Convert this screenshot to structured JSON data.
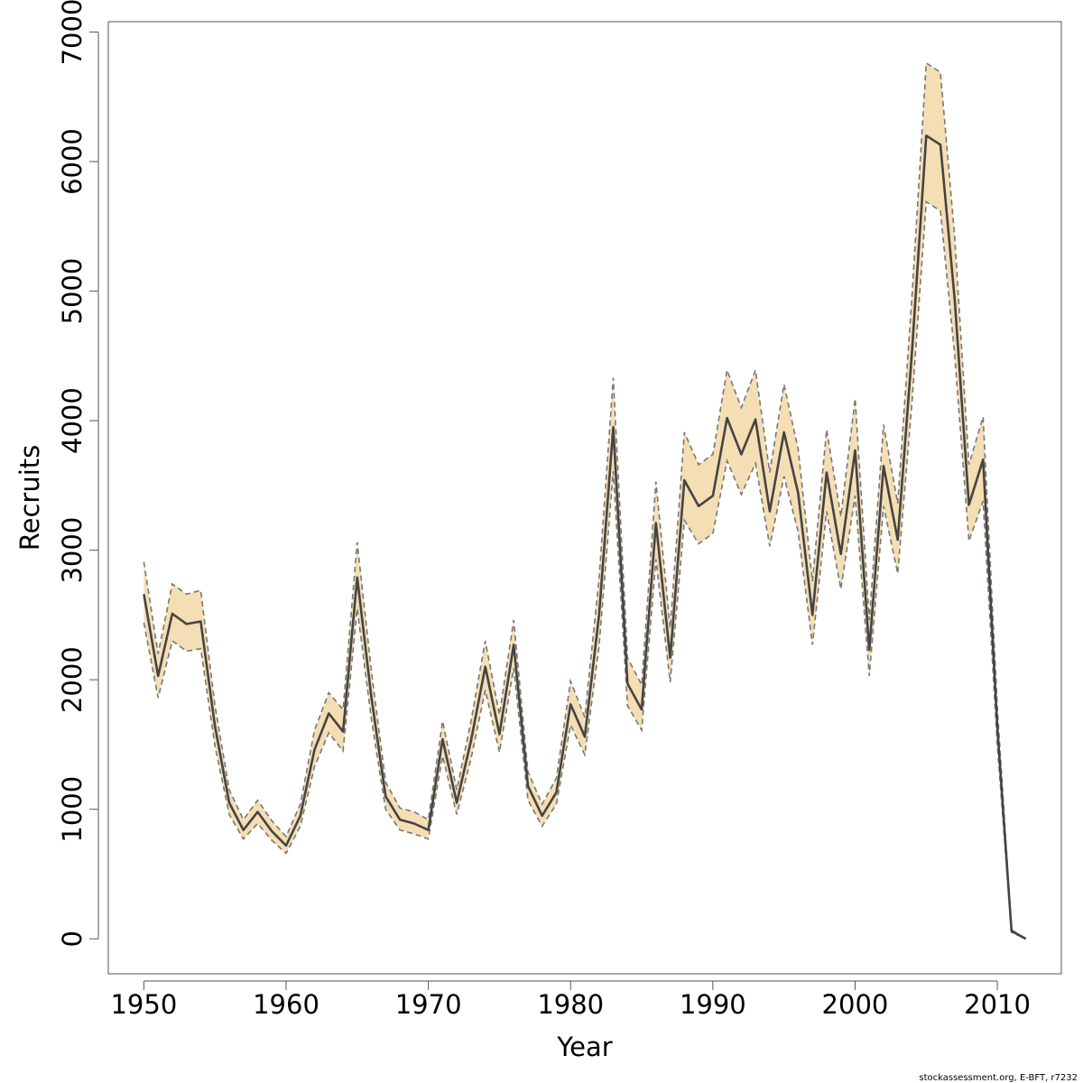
{
  "chart_data": {
    "type": "line",
    "title": "",
    "xlabel": "Year",
    "ylabel": "Recruits",
    "xlim": [
      1947.5,
      2014.5
    ],
    "ylim": [
      -270,
      7080
    ],
    "x_ticks": [
      1950,
      1960,
      1970,
      1980,
      1990,
      2000,
      2010
    ],
    "y_ticks": [
      0,
      1000,
      2000,
      3000,
      4000,
      5000,
      6000,
      7000
    ],
    "grid": false,
    "legend": "none",
    "colors": {
      "band": "#f5deb3",
      "line": "#444444",
      "bounds": "#777777"
    },
    "credit": "stockassessment.org, E-BFT, r7232",
    "x": [
      1950,
      1951,
      1952,
      1953,
      1954,
      1955,
      1956,
      1957,
      1958,
      1959,
      1960,
      1961,
      1962,
      1963,
      1964,
      1965,
      1966,
      1967,
      1968,
      1969,
      1970,
      1971,
      1972,
      1973,
      1974,
      1975,
      1976,
      1977,
      1978,
      1979,
      1980,
      1981,
      1982,
      1983,
      1984,
      1985,
      1986,
      1987,
      1988,
      1989,
      1990,
      1991,
      1992,
      1993,
      1994,
      1995,
      1996,
      1997,
      1998,
      1999,
      2000,
      2001,
      2002,
      2003,
      2004,
      2005,
      2006,
      2007,
      2008,
      2009,
      2010,
      2011,
      2012
    ],
    "series": [
      {
        "name": "Recruits",
        "values": [
          2660,
          2030,
          2510,
          2430,
          2450,
          1640,
          1050,
          840,
          980,
          830,
          720,
          950,
          1460,
          1740,
          1600,
          2790,
          1860,
          1100,
          920,
          890,
          840,
          1540,
          1050,
          1530,
          2100,
          1580,
          2270,
          1180,
          950,
          1130,
          1810,
          1560,
          2500,
          3950,
          1970,
          1770,
          3210,
          2170,
          3540,
          3340,
          3420,
          4020,
          3740,
          4010,
          3300,
          3910,
          3440,
          2500,
          3600,
          2970,
          3770,
          2230,
          3650,
          3080,
          4530,
          6200,
          6130,
          4940,
          3350,
          3700,
          1630,
          60,
          0
        ]
      },
      {
        "name": "upper",
        "values": [
          2910,
          2200,
          2740,
          2660,
          2690,
          1800,
          1150,
          920,
          1070,
          910,
          790,
          1040,
          1610,
          1900,
          1770,
          3060,
          2060,
          1210,
          1010,
          980,
          920,
          1680,
          1150,
          1680,
          2300,
          1730,
          2460,
          1290,
          1040,
          1240,
          1990,
          1710,
          2780,
          4330,
          2170,
          1960,
          3530,
          2400,
          3910,
          3660,
          3740,
          4390,
          4100,
          4390,
          3600,
          4280,
          3780,
          2760,
          3930,
          3260,
          4170,
          2460,
          3970,
          3360,
          4960,
          6760,
          6690,
          5420,
          3660,
          4030,
          1780,
          70,
          0
        ]
      },
      {
        "name": "lower",
        "values": [
          2440,
          1860,
          2300,
          2220,
          2240,
          1490,
          960,
          770,
          890,
          760,
          660,
          870,
          1330,
          1590,
          1450,
          2550,
          1690,
          1000,
          840,
          810,
          770,
          1410,
          960,
          1390,
          1920,
          1440,
          2090,
          1070,
          870,
          1040,
          1650,
          1420,
          2260,
          3610,
          1800,
          1610,
          2930,
          1980,
          3230,
          3050,
          3130,
          3690,
          3430,
          3670,
          3030,
          3570,
          3140,
          2270,
          3300,
          2700,
          3420,
          2030,
          3340,
          2820,
          4140,
          5690,
          5620,
          4510,
          3070,
          3380,
          1490,
          50,
          0
        ]
      }
    ]
  }
}
